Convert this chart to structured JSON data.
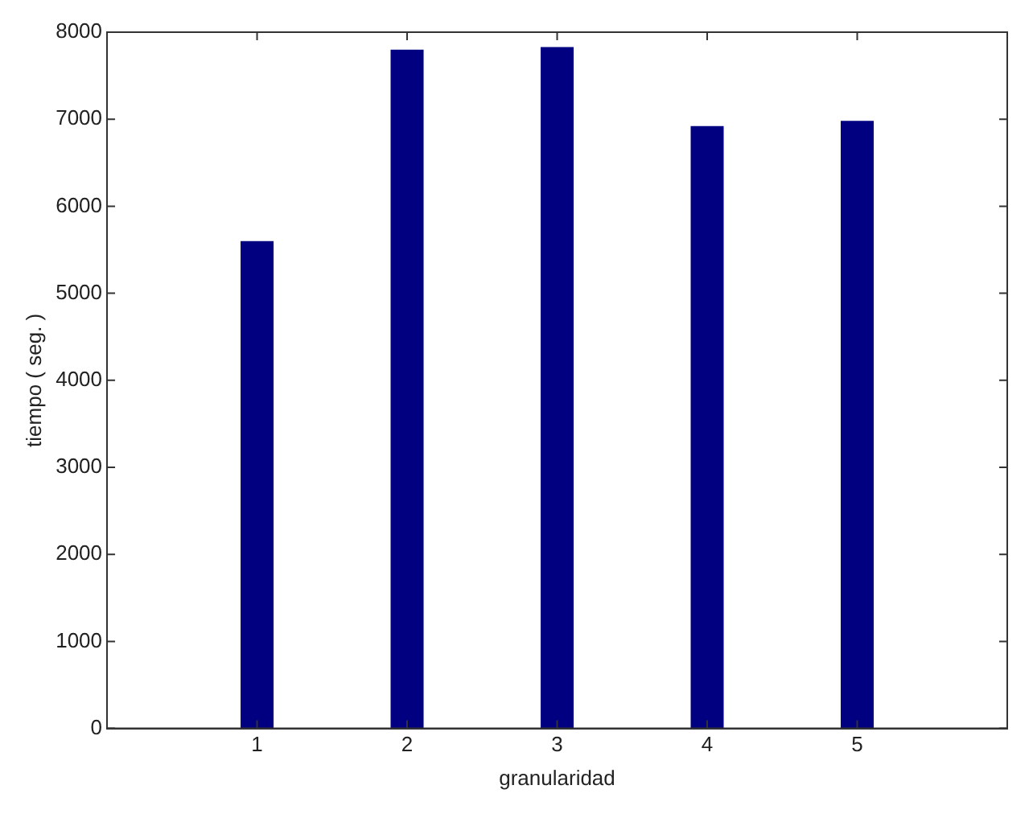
{
  "chart_data": {
    "type": "bar",
    "xlabel": "granularidad",
    "ylabel": "tiempo ( seg. )",
    "x": [
      1,
      2,
      3,
      4,
      5
    ],
    "values": [
      5600,
      7800,
      7830,
      6920,
      6980
    ],
    "color": "#000080",
    "xlim": [
      0,
      6
    ],
    "xticks": [
      1,
      2,
      3,
      4,
      5
    ],
    "ylim": [
      0,
      8000
    ],
    "yticks": [
      0,
      1000,
      2000,
      3000,
      4000,
      5000,
      6000,
      7000,
      8000
    ],
    "grid": false,
    "legend": false
  }
}
